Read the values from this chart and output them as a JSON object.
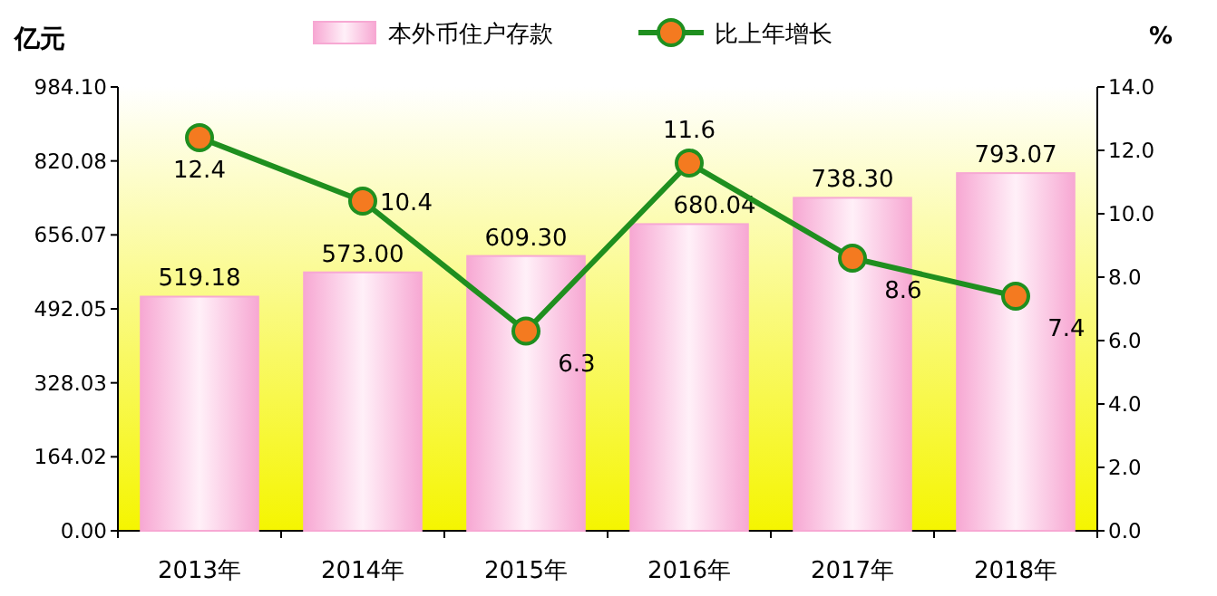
{
  "chart_data": {
    "type": "bar",
    "ylabel": "亿元",
    "y2label": "%",
    "categories": [
      "2013年",
      "2014年",
      "2015年",
      "2016年",
      "2017年",
      "2018年"
    ],
    "series": [
      {
        "name": "本外币住户存款",
        "color": "#f7a8d3",
        "values": [
          519.18,
          573.0,
          609.3,
          680.04,
          738.3,
          793.07
        ],
        "value_labels": [
          "519.18",
          "573.00",
          "609.30",
          "680.04",
          "738.30",
          "793.07"
        ]
      },
      {
        "name": "比上年增长",
        "type": "line",
        "axis": "y2",
        "color": "#1f8f1f",
        "values": [
          12.4,
          10.4,
          6.3,
          11.6,
          8.6,
          7.4
        ],
        "value_labels": [
          "12.4",
          "10.4",
          "6.3",
          "11.6",
          "8.6",
          "7.4"
        ]
      }
    ],
    "ylim": [
      0,
      984.1
    ],
    "yticks": [
      {
        "value": 0,
        "label": "0.00"
      },
      {
        "value": 164.02,
        "label": "164.02"
      },
      {
        "value": 328.03,
        "label": "328.03"
      },
      {
        "value": 492.05,
        "label": "492.05"
      },
      {
        "value": 656.07,
        "label": "656.07"
      },
      {
        "value": 820.08,
        "label": "820.08"
      },
      {
        "value": 984.1,
        "label": "984.10"
      }
    ],
    "y2lim": [
      0,
      14
    ],
    "y2ticks": [
      {
        "value": 0,
        "label": "0.0"
      },
      {
        "value": 2,
        "label": "2.0"
      },
      {
        "value": 4,
        "label": "4.0"
      },
      {
        "value": 6,
        "label": "6.0"
      },
      {
        "value": 8,
        "label": "8.0"
      },
      {
        "value": 10,
        "label": "10.0"
      },
      {
        "value": 12,
        "label": "12.0"
      },
      {
        "value": 14,
        "label": "14.0"
      }
    ],
    "marker": "circle",
    "legend": "top",
    "grid": false
  }
}
